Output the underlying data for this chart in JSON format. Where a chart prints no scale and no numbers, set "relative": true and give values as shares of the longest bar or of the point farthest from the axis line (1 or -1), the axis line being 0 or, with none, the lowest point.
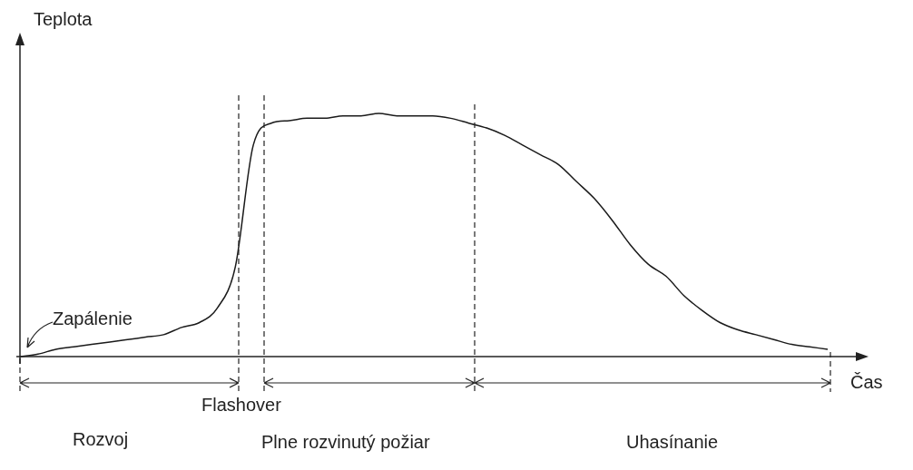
{
  "chart_data": {
    "type": "line",
    "relative": true,
    "xlabel": "Čas",
    "ylabel": "Teplota",
    "categories": [
      null,
      null,
      null,
      null,
      null,
      null,
      null,
      null,
      null,
      null,
      null,
      null,
      null,
      null,
      null,
      null,
      null,
      null,
      null,
      null,
      null,
      null,
      null,
      null,
      null,
      null,
      null,
      null,
      null,
      null,
      null,
      null,
      null,
      null,
      null,
      null,
      null,
      null,
      null,
      null,
      null,
      null,
      null,
      null,
      null,
      null
    ],
    "series": [
      {
        "color": "#1a1a1a",
        "values": [
          0,
          0.01,
          0.03,
          0.04,
          0.05,
          0.06,
          0.07,
          0.08,
          0.09,
          0.12,
          0.14,
          0.2,
          0.37,
          0.87,
          0.96,
          0.97,
          0.98,
          0.98,
          0.99,
          0.99,
          1,
          0.99,
          0.99,
          0.99,
          0.98,
          0.96,
          0.94,
          0.91,
          0.87,
          0.83,
          0.79,
          0.72,
          0.65,
          0.56,
          0.46,
          0.38,
          0.33,
          0.25,
          0.19,
          0.14,
          0.11,
          0.09,
          0.07,
          0.05,
          0.04,
          0.03
        ]
      }
    ],
    "annotations": [
      "Zapálenie",
      "Flashover",
      "Rozvoj",
      "Plne rozvinutý požiar",
      "Uhasínanie"
    ],
    "marker": "none",
    "line_style": "solid",
    "grid": false,
    "legend": false
  }
}
